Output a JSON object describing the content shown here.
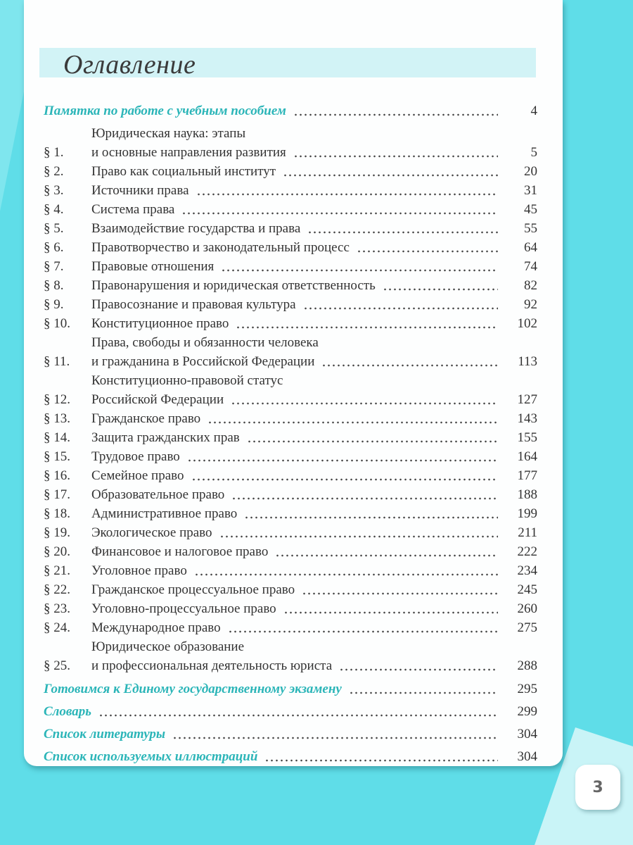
{
  "heading": "Оглавление",
  "page_number": "3",
  "entries": [
    {
      "num": "",
      "lines": [
        "Памятка по работе с учебным пособием"
      ],
      "page": "4",
      "special": true
    },
    {
      "num": "§ 1.",
      "lines": [
        "Юридическая наука: этапы",
        "и основные направления развития"
      ],
      "page": "5"
    },
    {
      "num": "§ 2.",
      "lines": [
        "Право как социальный институт"
      ],
      "page": "20"
    },
    {
      "num": "§ 3.",
      "lines": [
        "Источники права"
      ],
      "page": "31"
    },
    {
      "num": "§ 4.",
      "lines": [
        "Система права"
      ],
      "page": "45"
    },
    {
      "num": "§ 5.",
      "lines": [
        "Взаимодействие государства и права"
      ],
      "page": "55"
    },
    {
      "num": "§ 6.",
      "lines": [
        "Правотворчество и законодательный процесс"
      ],
      "page": "64"
    },
    {
      "num": "§ 7.",
      "lines": [
        "Правовые отношения"
      ],
      "page": "74"
    },
    {
      "num": "§ 8.",
      "lines": [
        "Правонарушения и юридическая ответственность"
      ],
      "page": "82"
    },
    {
      "num": "§ 9.",
      "lines": [
        "Правосознание и правовая культура"
      ],
      "page": "92"
    },
    {
      "num": "§ 10.",
      "lines": [
        "Конституционное право"
      ],
      "page": "102"
    },
    {
      "num": "§ 11.",
      "lines": [
        "Права, свободы и обязанности человека",
        "и гражданина в Российской Федерации"
      ],
      "page": "113"
    },
    {
      "num": "§ 12.",
      "lines": [
        "Конституционно-правовой статус",
        "Российской Федерации"
      ],
      "page": "127"
    },
    {
      "num": "§ 13.",
      "lines": [
        "Гражданское право"
      ],
      "page": "143"
    },
    {
      "num": "§ 14.",
      "lines": [
        "Защита гражданских прав"
      ],
      "page": "155"
    },
    {
      "num": "§ 15.",
      "lines": [
        "Трудовое право"
      ],
      "page": "164"
    },
    {
      "num": "§ 16.",
      "lines": [
        "Семейное право"
      ],
      "page": "177"
    },
    {
      "num": "§ 17.",
      "lines": [
        "Образовательное право"
      ],
      "page": "188"
    },
    {
      "num": "§ 18.",
      "lines": [
        "Административное право"
      ],
      "page": "199"
    },
    {
      "num": "§ 19.",
      "lines": [
        "Экологическое право"
      ],
      "page": "211"
    },
    {
      "num": "§ 20.",
      "lines": [
        "Финансовое и налоговое право"
      ],
      "page": "222"
    },
    {
      "num": "§ 21.",
      "lines": [
        "Уголовное право"
      ],
      "page": "234"
    },
    {
      "num": "§ 22.",
      "lines": [
        "Гражданское процессуальное право"
      ],
      "page": "245"
    },
    {
      "num": "§ 23.",
      "lines": [
        "Уголовно-процессуальное право"
      ],
      "page": "260"
    },
    {
      "num": "§ 24.",
      "lines": [
        "Международное право"
      ],
      "page": "275"
    },
    {
      "num": "§ 25.",
      "lines": [
        "Юридическое образование",
        "и профессиональная деятельность юриста"
      ],
      "page": "288"
    },
    {
      "num": "",
      "lines": [
        "Готовимся к Единому государственному экзамену"
      ],
      "page": "295",
      "special": true
    },
    {
      "num": "",
      "lines": [
        "Словарь"
      ],
      "page": "299",
      "special": true
    },
    {
      "num": "",
      "lines": [
        "Список литературы"
      ],
      "page": "304",
      "special": true
    },
    {
      "num": "",
      "lines": [
        "Список используемых иллюстраций"
      ],
      "page": "304",
      "special": true
    }
  ],
  "colors": {
    "background": "#5fdde8",
    "accent_heading": "#2bb5b8",
    "band": "#d2f3f6"
  }
}
